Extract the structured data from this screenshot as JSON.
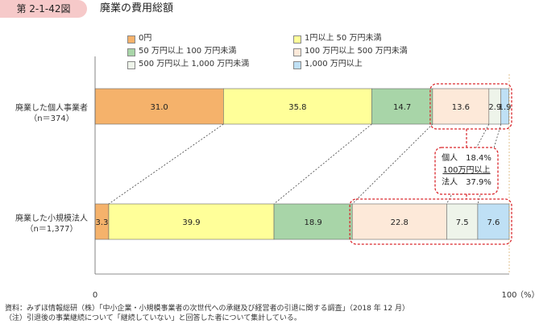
{
  "header": {
    "figure_number": "第 2-1-42図",
    "title": "廃業の費用総額"
  },
  "colors": {
    "badge": "#f6c9c9",
    "highlight": "#d9262b"
  },
  "chart_data": {
    "type": "bar",
    "orientation": "horizontal",
    "stacked": true,
    "xlim": [
      0,
      100
    ],
    "x_ticks": [
      "0",
      "100"
    ],
    "x_unit": "（%）",
    "categories": [
      {
        "name": "廃業した個人事業者",
        "n": "（n＝374）"
      },
      {
        "name": "廃業した小規模法人",
        "n": "（n＝1,377）"
      }
    ],
    "series": [
      {
        "name": "0円",
        "color": "#f5b26b",
        "values": [
          31.0,
          3.3
        ],
        "labels": [
          "31.0",
          "3.3"
        ]
      },
      {
        "name": "1円以上 50 万円未満",
        "color": "#ffff99",
        "values": [
          35.8,
          39.9
        ],
        "labels": [
          "35.8",
          "39.9"
        ]
      },
      {
        "name": "50 万円以上 100 万円未満",
        "color": "#a8d5a8",
        "values": [
          14.7,
          18.9
        ],
        "labels": [
          "14.7",
          "18.9"
        ]
      },
      {
        "name": "100 万円以上 500 万円未満",
        "color": "#fde9d9",
        "values": [
          13.6,
          22.8
        ],
        "labels": [
          "13.6",
          "22.8"
        ]
      },
      {
        "name": "500 万円以上 1,000 万円未満",
        "color": "#eef4ea",
        "values": [
          2.9,
          7.5
        ],
        "labels": [
          "2.9",
          "7.5"
        ]
      },
      {
        "name": "1,000 万円以上",
        "color": "#bfe0f5",
        "values": [
          1.9,
          7.6
        ],
        "labels": [
          "1.9",
          "7.6"
        ]
      }
    ],
    "annotation": {
      "line1": "個人　18.4%",
      "line2": "100万円以上",
      "line3": "法人　37.9%"
    }
  },
  "footnotes": [
    "資料：みずほ情報総研（株）「中小企業・小規模事業者の次世代への承継及び経営者の引退に関する調査」（2018 年 12 月）",
    "（注）引退後の事業継続について「継続していない」と回答した者について集計している。"
  ]
}
